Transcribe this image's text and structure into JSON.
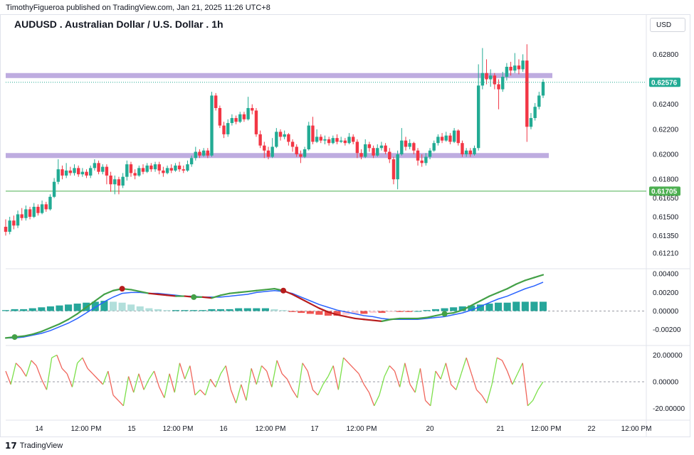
{
  "header": {
    "published_by": "TimothyFigueroa published on TradingView.com, Jan 21, 2025 11:26 UTC+8",
    "title": "AUDUSD . Australian Dollar / U.S. Dollar . 1h",
    "currency_button": "USD"
  },
  "footer": {
    "brand": "TradingView",
    "logo_glyph": "17"
  },
  "colors": {
    "up": "#22ab94",
    "down": "#f23645",
    "zone": "#b39ddb",
    "support_line": "#4caf50",
    "current_price_tag": "#22ab94",
    "fast_line_green": "#43a047",
    "fast_line_red": "#b71c1c",
    "slow_line": "#2962ff",
    "hist_pos_strong": "#26a69a",
    "hist_pos_weak": "#b2dfdb",
    "hist_neg_strong": "#ef5350",
    "hist_neg_weak": "#ffcdd2"
  },
  "chart_data": [
    {
      "type": "candlestick",
      "name": "price",
      "x_labels": [
        "14",
        "12:00 PM",
        "15",
        "12:00 PM",
        "16",
        "12:00 PM",
        "17",
        "12:00 PM",
        "20",
        "21",
        "12:00 PM",
        "22",
        "12:00 PM"
      ],
      "y_ticks": [
        "0.62800",
        "0.62400",
        "0.62200",
        "0.62000",
        "0.61800",
        "0.61650",
        "0.61500",
        "0.61350",
        "0.61210"
      ],
      "ylim": [
        0.6113,
        0.6295
      ],
      "current_price": "0.62576",
      "support_label": "0.61705",
      "resistance_zone": [
        0.6261,
        0.6265
      ],
      "support_zone": [
        0.61975,
        0.6201
      ],
      "candles": [
        [
          0.6142,
          0.6138,
          0.6148,
          0.6135
        ],
        [
          0.6138,
          0.6147,
          0.615,
          0.6136
        ],
        [
          0.6147,
          0.6143,
          0.6151,
          0.614
        ],
        [
          0.6143,
          0.6152,
          0.6155,
          0.6141
        ],
        [
          0.6152,
          0.6149,
          0.6157,
          0.6147
        ],
        [
          0.6149,
          0.6156,
          0.6159,
          0.6147
        ],
        [
          0.6156,
          0.615,
          0.6158,
          0.6148
        ],
        [
          0.615,
          0.6158,
          0.6161,
          0.6149
        ],
        [
          0.6158,
          0.6153,
          0.616,
          0.6151
        ],
        [
          0.6153,
          0.616,
          0.6163,
          0.6152
        ],
        [
          0.616,
          0.6156,
          0.6162,
          0.6154
        ],
        [
          0.6156,
          0.6166,
          0.6168,
          0.6155
        ],
        [
          0.6166,
          0.6178,
          0.6181,
          0.6165
        ],
        [
          0.6178,
          0.6188,
          0.6196,
          0.6176
        ],
        [
          0.6188,
          0.6183,
          0.6191,
          0.618
        ],
        [
          0.6183,
          0.6187,
          0.6193,
          0.6181
        ],
        [
          0.6187,
          0.6185,
          0.619,
          0.6183
        ],
        [
          0.6185,
          0.6189,
          0.6192,
          0.6183
        ],
        [
          0.6189,
          0.6184,
          0.6191,
          0.6182
        ],
        [
          0.6184,
          0.6186,
          0.6189,
          0.6182
        ],
        [
          0.6186,
          0.6183,
          0.6188,
          0.6181
        ],
        [
          0.6183,
          0.6189,
          0.6191,
          0.6181
        ],
        [
          0.6189,
          0.6193,
          0.6196,
          0.6187
        ],
        [
          0.6193,
          0.6186,
          0.6195,
          0.6184
        ],
        [
          0.6186,
          0.619,
          0.6192,
          0.6184
        ],
        [
          0.619,
          0.6183,
          0.6192,
          0.6176
        ],
        [
          0.6183,
          0.6176,
          0.6186,
          0.617
        ],
        [
          0.6176,
          0.618,
          0.6183,
          0.6168
        ],
        [
          0.618,
          0.6175,
          0.6182,
          0.6168
        ],
        [
          0.6175,
          0.6182,
          0.6185,
          0.6173
        ],
        [
          0.6182,
          0.6192,
          0.6195,
          0.6179
        ],
        [
          0.6192,
          0.6185,
          0.6194,
          0.6182
        ],
        [
          0.6185,
          0.6183,
          0.6188,
          0.618
        ],
        [
          0.6183,
          0.6189,
          0.6191,
          0.6182
        ],
        [
          0.6189,
          0.6186,
          0.6192,
          0.6184
        ],
        [
          0.6186,
          0.6191,
          0.6193,
          0.6185
        ],
        [
          0.6191,
          0.6188,
          0.6193,
          0.6186
        ],
        [
          0.6188,
          0.6192,
          0.6194,
          0.6186
        ],
        [
          0.6192,
          0.6187,
          0.6194,
          0.6184
        ],
        [
          0.6187,
          0.6185,
          0.619,
          0.6182
        ],
        [
          0.6185,
          0.6189,
          0.6191,
          0.6184
        ],
        [
          0.6189,
          0.6187,
          0.6192,
          0.6185
        ],
        [
          0.6187,
          0.6191,
          0.6193,
          0.6186
        ],
        [
          0.6191,
          0.6188,
          0.6194,
          0.6186
        ],
        [
          0.6188,
          0.6187,
          0.6191,
          0.6185
        ],
        [
          0.6187,
          0.6192,
          0.6195,
          0.6186
        ],
        [
          0.6192,
          0.6197,
          0.6199,
          0.619
        ],
        [
          0.6197,
          0.6202,
          0.6206,
          0.6195
        ],
        [
          0.6202,
          0.6199,
          0.6204,
          0.6197
        ],
        [
          0.6199,
          0.6203,
          0.6205,
          0.6198
        ],
        [
          0.6203,
          0.6199,
          0.6205,
          0.6197
        ],
        [
          0.6199,
          0.6247,
          0.625,
          0.6198
        ],
        [
          0.6247,
          0.6237,
          0.6249,
          0.6235
        ],
        [
          0.6237,
          0.6223,
          0.6239,
          0.6221
        ],
        [
          0.6223,
          0.6216,
          0.6226,
          0.6213
        ],
        [
          0.6216,
          0.6225,
          0.6228,
          0.6214
        ],
        [
          0.6225,
          0.6229,
          0.6232,
          0.6223
        ],
        [
          0.6229,
          0.6226,
          0.6231,
          0.6224
        ],
        [
          0.6226,
          0.6232,
          0.6234,
          0.6225
        ],
        [
          0.6232,
          0.6228,
          0.6234,
          0.6226
        ],
        [
          0.6228,
          0.6237,
          0.6246,
          0.6227
        ],
        [
          0.6237,
          0.6235,
          0.624,
          0.6232
        ],
        [
          0.6235,
          0.6216,
          0.6237,
          0.6214
        ],
        [
          0.6216,
          0.6207,
          0.6219,
          0.6205
        ],
        [
          0.6207,
          0.6203,
          0.621,
          0.6197
        ],
        [
          0.6203,
          0.6198,
          0.6206,
          0.6196
        ],
        [
          0.6198,
          0.6206,
          0.6213,
          0.6197
        ],
        [
          0.6206,
          0.6218,
          0.6221,
          0.6205
        ],
        [
          0.6218,
          0.6214,
          0.622,
          0.6211
        ],
        [
          0.6214,
          0.6216,
          0.6219,
          0.6212
        ],
        [
          0.6216,
          0.621,
          0.6217,
          0.6207
        ],
        [
          0.621,
          0.6206,
          0.6212,
          0.6202
        ],
        [
          0.6206,
          0.62,
          0.6208,
          0.6198
        ],
        [
          0.62,
          0.6198,
          0.6203,
          0.6193
        ],
        [
          0.6198,
          0.6204,
          0.6206,
          0.6197
        ],
        [
          0.6204,
          0.6223,
          0.6226,
          0.6203
        ],
        [
          0.6223,
          0.621,
          0.623,
          0.6208
        ],
        [
          0.621,
          0.6214,
          0.622,
          0.6209
        ],
        [
          0.6214,
          0.6211,
          0.6216,
          0.6209
        ],
        [
          0.6211,
          0.6212,
          0.6215,
          0.6208
        ],
        [
          0.6212,
          0.6209,
          0.6214,
          0.6207
        ],
        [
          0.6209,
          0.6213,
          0.6215,
          0.6208
        ],
        [
          0.6213,
          0.621,
          0.6216,
          0.6208
        ],
        [
          0.621,
          0.6211,
          0.6214,
          0.6209
        ],
        [
          0.6211,
          0.6209,
          0.6213,
          0.6207
        ],
        [
          0.6209,
          0.6214,
          0.6217,
          0.6208
        ],
        [
          0.6214,
          0.621,
          0.6216,
          0.6208
        ],
        [
          0.621,
          0.6201,
          0.6212,
          0.6197
        ],
        [
          0.6201,
          0.6198,
          0.6204,
          0.6196
        ],
        [
          0.6198,
          0.6208,
          0.6212,
          0.6197
        ],
        [
          0.6208,
          0.6205,
          0.621,
          0.6202
        ],
        [
          0.6205,
          0.6199,
          0.6207,
          0.6197
        ],
        [
          0.6199,
          0.6205,
          0.6208,
          0.6198
        ],
        [
          0.6205,
          0.6207,
          0.621,
          0.6203
        ],
        [
          0.6207,
          0.6202,
          0.6209,
          0.62
        ],
        [
          0.6202,
          0.6196,
          0.6205,
          0.6193
        ],
        [
          0.6196,
          0.618,
          0.6198,
          0.6176
        ],
        [
          0.618,
          0.62,
          0.6203,
          0.6172
        ],
        [
          0.62,
          0.6211,
          0.6221,
          0.6199
        ],
        [
          0.6211,
          0.6206,
          0.6214,
          0.6203
        ],
        [
          0.6206,
          0.6209,
          0.6212,
          0.6204
        ],
        [
          0.6209,
          0.6203,
          0.621,
          0.62
        ],
        [
          0.6203,
          0.6195,
          0.6205,
          0.6191
        ],
        [
          0.6195,
          0.6193,
          0.62,
          0.619
        ],
        [
          0.6193,
          0.6198,
          0.6201,
          0.6191
        ],
        [
          0.6198,
          0.6203,
          0.6205,
          0.6196
        ],
        [
          0.6203,
          0.6209,
          0.6211,
          0.6202
        ],
        [
          0.6209,
          0.6214,
          0.6216,
          0.6207
        ],
        [
          0.6214,
          0.6211,
          0.6217,
          0.6209
        ],
        [
          0.6211,
          0.6215,
          0.6218,
          0.621
        ],
        [
          0.6215,
          0.621,
          0.6217,
          0.6208
        ],
        [
          0.621,
          0.6219,
          0.6221,
          0.6209
        ],
        [
          0.6219,
          0.6209,
          0.622,
          0.6207
        ],
        [
          0.6209,
          0.62,
          0.6211,
          0.6198
        ],
        [
          0.62,
          0.6203,
          0.6205,
          0.6198
        ],
        [
          0.6203,
          0.62,
          0.6205,
          0.6198
        ],
        [
          0.62,
          0.6205,
          0.6207,
          0.6199
        ],
        [
          0.6205,
          0.6255,
          0.6272,
          0.6203
        ],
        [
          0.6255,
          0.6265,
          0.6285,
          0.6252
        ],
        [
          0.6265,
          0.626,
          0.6276,
          0.6256
        ],
        [
          0.626,
          0.6263,
          0.6268,
          0.6254
        ],
        [
          0.6263,
          0.6256,
          0.6265,
          0.6252
        ],
        [
          0.6256,
          0.6252,
          0.626,
          0.6236
        ],
        [
          0.6252,
          0.6262,
          0.6266,
          0.625
        ],
        [
          0.6262,
          0.627,
          0.6273,
          0.6259
        ],
        [
          0.627,
          0.6267,
          0.6274,
          0.6263
        ],
        [
          0.6267,
          0.6271,
          0.6281,
          0.6265
        ],
        [
          0.6271,
          0.6268,
          0.6276,
          0.6264
        ],
        [
          0.6268,
          0.6275,
          0.628,
          0.6266
        ],
        [
          0.6275,
          0.6222,
          0.6288,
          0.621
        ],
        [
          0.6222,
          0.6229,
          0.6233,
          0.622
        ],
        [
          0.6229,
          0.6238,
          0.6241,
          0.6227
        ],
        [
          0.6238,
          0.6247,
          0.625,
          0.6236
        ],
        [
          0.6247,
          0.6258,
          0.626,
          0.6245
        ]
      ]
    },
    {
      "type": "line",
      "name": "oscillator",
      "y_ticks": [
        "0.00400",
        "0.00200",
        "0.00000",
        "-0.00200"
      ],
      "ylim": [
        -0.0031,
        0.0044
      ],
      "series": [
        {
          "values": [
            -0.0029,
            -0.0028,
            -0.0027,
            -0.0025,
            -0.0022,
            -0.0018,
            -0.0014,
            -0.0009,
            -0.0003,
            0.0004,
            0.0011,
            0.0018,
            0.0022,
            0.0024,
            0.0023,
            0.0021,
            0.0019,
            0.0018,
            0.0017,
            0.0016,
            0.0016,
            0.0015,
            0.0015,
            0.0014,
            0.0017,
            0.0019,
            0.002,
            0.0021,
            0.0022,
            0.0023,
            0.0024,
            0.0022,
            0.0018,
            0.0013,
            0.0008,
            0.0003,
            -0.0001,
            -0.0004,
            -0.0006,
            -0.0008,
            -0.0009,
            -0.001,
            -0.0011,
            -0.0009,
            -0.0008,
            -0.0008,
            -0.0008,
            -0.0007,
            -0.0005,
            -0.0003,
            -0.0002,
            0.0001,
            0.0006,
            0.0011,
            0.0016,
            0.002,
            0.0024,
            0.0029,
            0.0033,
            0.0036,
            0.0039
          ]
        },
        {
          "values": [
            -0.0029,
            -0.0029,
            -0.0028,
            -0.0026,
            -0.0024,
            -0.0021,
            -0.0017,
            -0.0013,
            -0.0008,
            -0.0002,
            0.0004,
            0.001,
            0.0015,
            0.0019,
            0.002,
            0.002,
            0.0019,
            0.0019,
            0.0018,
            0.0017,
            0.0016,
            0.0016,
            0.0015,
            0.0015,
            0.0015,
            0.0016,
            0.0017,
            0.0018,
            0.002,
            0.0021,
            0.0022,
            0.0021,
            0.0019,
            0.0015,
            0.0011,
            0.0007,
            0.0004,
            0.0001,
            -0.0001,
            -0.0003,
            -0.0005,
            -0.0006,
            -0.0008,
            -0.0009,
            -0.0009,
            -0.0009,
            -0.0009,
            -0.0008,
            -0.0007,
            -0.0006,
            -0.0004,
            -0.0002,
            0.0001,
            0.0005,
            0.0009,
            0.0013,
            0.0016,
            0.002,
            0.0024,
            0.0027,
            0.0031
          ]
        }
      ],
      "histogram": [
        0.0001,
        0.0002,
        0.0002,
        0.0003,
        0.0004,
        0.0005,
        0.0006,
        0.0007,
        0.0008,
        0.0009,
        0.001,
        0.0011,
        0.001,
        0.0009,
        0.0007,
        0.0005,
        0.0003,
        0.0002,
        0.0001,
        0.0001,
        0.0001,
        0.0001,
        0.0001,
        0.0002,
        0.0002,
        0.0002,
        0.0003,
        0.0003,
        0.0003,
        0.0003,
        0.0002,
        0.0001,
        -0.0001,
        -0.0002,
        -0.0003,
        -0.0004,
        -0.0005,
        -0.0005,
        -0.0004,
        -0.0003,
        -0.0003,
        -0.0002,
        -0.0002,
        -0.0001,
        -0.0001,
        -0.0001,
        0.0,
        0.0001,
        0.0002,
        0.0003,
        0.0004,
        0.0005,
        0.0006,
        0.0007,
        0.0008,
        0.0009,
        0.0009,
        0.001,
        0.001,
        0.001,
        0.001
      ],
      "cross_markers": [
        {
          "index": 1,
          "dir": "up"
        },
        {
          "index": 13,
          "dir": "down"
        },
        {
          "index": 21,
          "dir": "up"
        },
        {
          "index": 31,
          "dir": "down"
        },
        {
          "index": 49,
          "dir": "up"
        }
      ]
    },
    {
      "type": "line",
      "name": "momentum",
      "y_ticks": [
        "20.00000",
        "0.00000",
        "-20.00000"
      ],
      "ylim": [
        -25,
        25
      ],
      "series": [
        {
          "values": [
            8,
            -2,
            14,
            10,
            4,
            16,
            12,
            2,
            -6,
            18,
            20,
            10,
            6,
            -4,
            14,
            18,
            10,
            6,
            2,
            -2,
            8,
            -10,
            -14,
            -18,
            4,
            -8,
            6,
            -6,
            2,
            8,
            -4,
            -12,
            6,
            -8,
            14,
            2,
            12,
            -10,
            -6,
            -10,
            2,
            -4,
            6,
            12,
            -6,
            -16,
            -2,
            -14,
            10,
            -2,
            12,
            8,
            -4,
            16,
            6,
            2,
            -6,
            -12,
            14,
            8,
            -6,
            -10,
            -2,
            4,
            12,
            -6,
            18,
            14,
            10,
            6,
            -2,
            -8,
            -18,
            -10,
            4,
            12,
            8,
            -4,
            14,
            -2,
            -8,
            10,
            -14,
            -18,
            8,
            2,
            14,
            -2,
            -6,
            6,
            18,
            6,
            -6,
            -10,
            -16,
            -2,
            18,
            16,
            8,
            -2,
            6,
            14,
            -18,
            -14,
            -6,
            0
          ]
        }
      ]
    }
  ]
}
